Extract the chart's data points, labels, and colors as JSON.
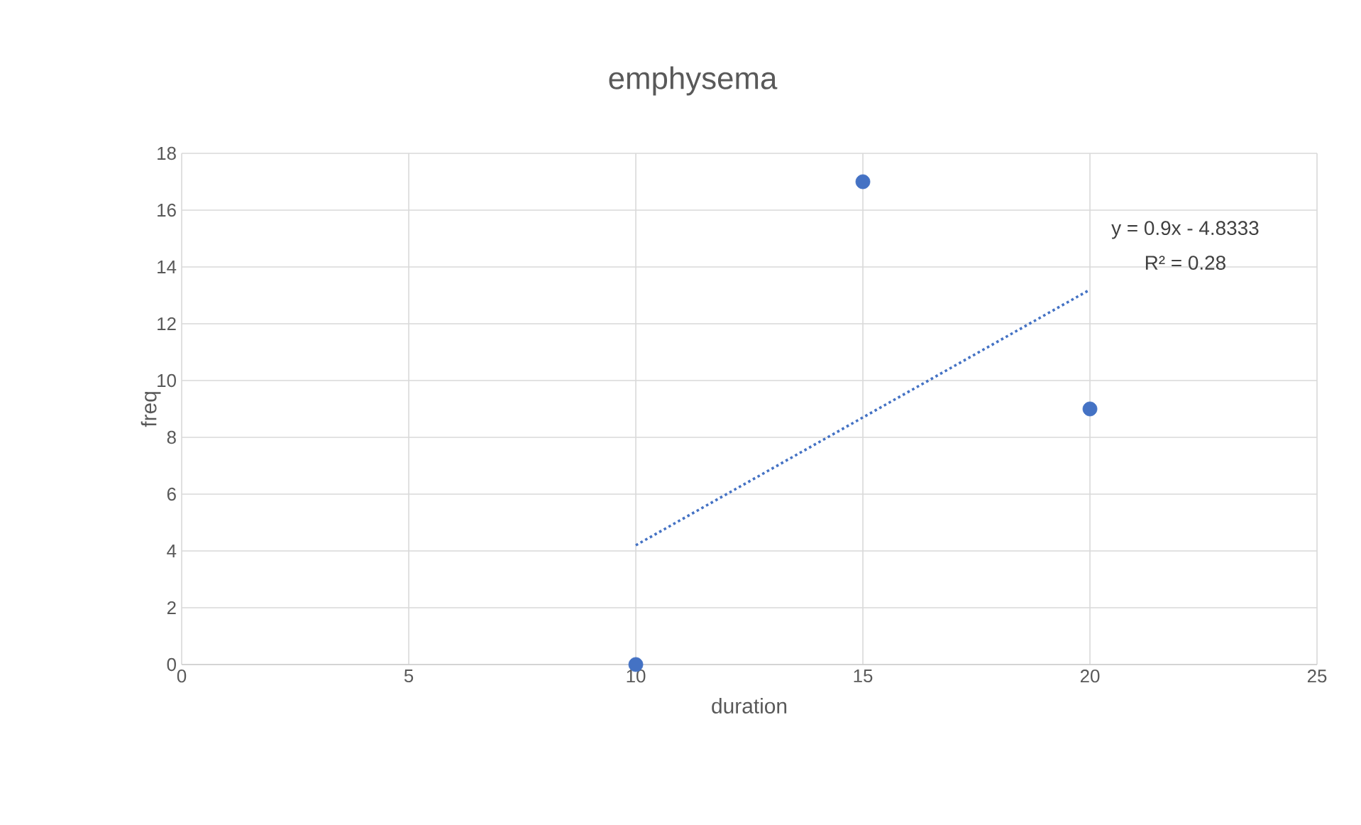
{
  "chart_data": {
    "type": "scatter",
    "title": "emphysema",
    "xlabel": "duration",
    "ylabel": "freq",
    "xlim": [
      0,
      25
    ],
    "xticks": [
      0,
      5,
      10,
      15,
      20,
      25
    ],
    "ylim": [
      0,
      18
    ],
    "yticks": [
      0,
      2,
      4,
      6,
      8,
      10,
      12,
      14,
      16,
      18
    ],
    "grid": true,
    "marker": "circle",
    "series": [
      {
        "type": "scatter",
        "color": "#4472c4",
        "x": [
          10,
          15,
          20
        ],
        "values": [
          0,
          17,
          9
        ]
      },
      {
        "type": "line",
        "color": "#4472c4",
        "line_style": "dotted",
        "marker": "none",
        "x": [
          10,
          20
        ],
        "values": [
          4.2,
          13.2
        ]
      }
    ],
    "annotations": [
      "y = 0.9x - 4.8333",
      "R² = 0.28"
    ]
  }
}
